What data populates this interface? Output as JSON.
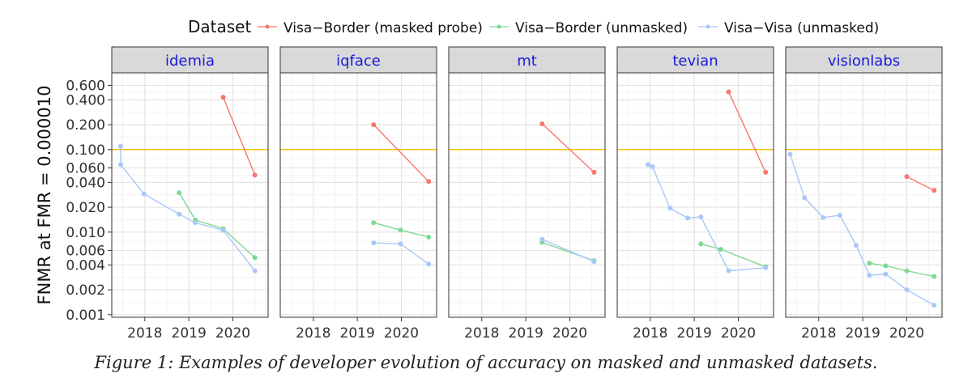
{
  "legend": {
    "title": "Dataset",
    "placement": "top"
  },
  "caption": "Figure 1: Examples of developer evolution of accuracy on masked and unmasked datasets.",
  "colors": {
    "masked": "#F8766D",
    "border_unmasked": "#7CD992",
    "visa_unmasked": "#A9C8F8",
    "threshold": "#F5C518",
    "strip_bg": "#D9D9D9",
    "strip_text": "#1a1adb"
  },
  "chart_data": {
    "type": "line",
    "facet_by": "developer",
    "facets": [
      "idemia",
      "iqface",
      "mt",
      "tevian",
      "visionlabs"
    ],
    "ylabel": "FNMR at FMR = 0.000010",
    "xlabel": "",
    "y_scale": "log",
    "ylim": [
      0.00093,
      0.85
    ],
    "xlim": [
      2017.25,
      2020.8
    ],
    "x_ticks": [
      2018,
      2019,
      2020
    ],
    "x_tick_labels": [
      "2018",
      "2019",
      "2020"
    ],
    "y_ticks": [
      0.001,
      0.002,
      0.004,
      0.006,
      0.01,
      0.02,
      0.04,
      0.06,
      0.1,
      0.2,
      0.4,
      0.6
    ],
    "y_tick_labels": [
      "0.001",
      "0.002",
      "0.004",
      "0.006",
      "0.010",
      "0.020",
      "0.040",
      "0.060",
      "0.100",
      "0.200",
      "0.400",
      "0.600"
    ],
    "reference_line": 0.1,
    "grid": true,
    "series": [
      {
        "name": "Visa−Border (masked probe)",
        "color_key": "masked",
        "points": {
          "idemia": [
            [
              2019.78,
              0.43
            ],
            [
              2020.5,
              0.049
            ]
          ],
          "iqface": [
            [
              2019.37,
              0.2
            ],
            [
              2020.62,
              0.041
            ]
          ],
          "mt": [
            [
              2019.37,
              0.205
            ],
            [
              2020.55,
              0.053
            ]
          ],
          "tevian": [
            [
              2019.78,
              0.5
            ],
            [
              2020.62,
              0.053
            ]
          ],
          "visionlabs": [
            [
              2020.0,
              0.047
            ],
            [
              2020.62,
              0.032
            ]
          ]
        }
      },
      {
        "name": "Visa−Border (unmasked)",
        "color_key": "border_unmasked",
        "points": {
          "idemia": [
            [
              2018.78,
              0.03
            ],
            [
              2019.15,
              0.014
            ],
            [
              2019.78,
              0.011
            ],
            [
              2020.5,
              0.0049
            ]
          ],
          "iqface": [
            [
              2019.37,
              0.013
            ],
            [
              2019.98,
              0.0106
            ],
            [
              2020.62,
              0.0087
            ]
          ],
          "mt": [
            [
              2019.37,
              0.0075
            ],
            [
              2020.55,
              0.0045
            ]
          ],
          "tevian": [
            [
              2019.15,
              0.0072
            ],
            [
              2019.6,
              0.0062
            ],
            [
              2020.62,
              0.0038
            ]
          ],
          "visionlabs": [
            [
              2019.15,
              0.0042
            ],
            [
              2019.52,
              0.0039
            ],
            [
              2020.0,
              0.0034
            ],
            [
              2020.62,
              0.0029
            ]
          ]
        }
      },
      {
        "name": "Visa−Visa (unmasked)",
        "color_key": "visa_unmasked",
        "points": {
          "idemia": [
            [
              2017.45,
              0.11
            ],
            [
              2017.45,
              0.066
            ],
            [
              2017.98,
              0.029
            ],
            [
              2018.78,
              0.0165
            ],
            [
              2019.15,
              0.013
            ],
            [
              2019.78,
              0.0105
            ],
            [
              2020.5,
              0.0034
            ]
          ],
          "iqface": [
            [
              2019.37,
              0.0074
            ],
            [
              2019.98,
              0.0072
            ],
            [
              2020.62,
              0.0041
            ]
          ],
          "mt": [
            [
              2019.37,
              0.0082
            ],
            [
              2020.55,
              0.0044
            ]
          ],
          "tevian": [
            [
              2017.95,
              0.066
            ],
            [
              2018.05,
              0.062
            ],
            [
              2018.45,
              0.0195
            ],
            [
              2018.85,
              0.0148
            ],
            [
              2019.15,
              0.0153
            ],
            [
              2019.78,
              0.0034
            ],
            [
              2020.62,
              0.0037
            ]
          ],
          "visionlabs": [
            [
              2017.35,
              0.088
            ],
            [
              2017.68,
              0.026
            ],
            [
              2018.1,
              0.015
            ],
            [
              2018.48,
              0.016
            ],
            [
              2018.85,
              0.0069
            ],
            [
              2019.15,
              0.003
            ],
            [
              2019.52,
              0.0031
            ],
            [
              2020.0,
              0.002
            ],
            [
              2020.62,
              0.0013
            ]
          ]
        }
      }
    ]
  }
}
